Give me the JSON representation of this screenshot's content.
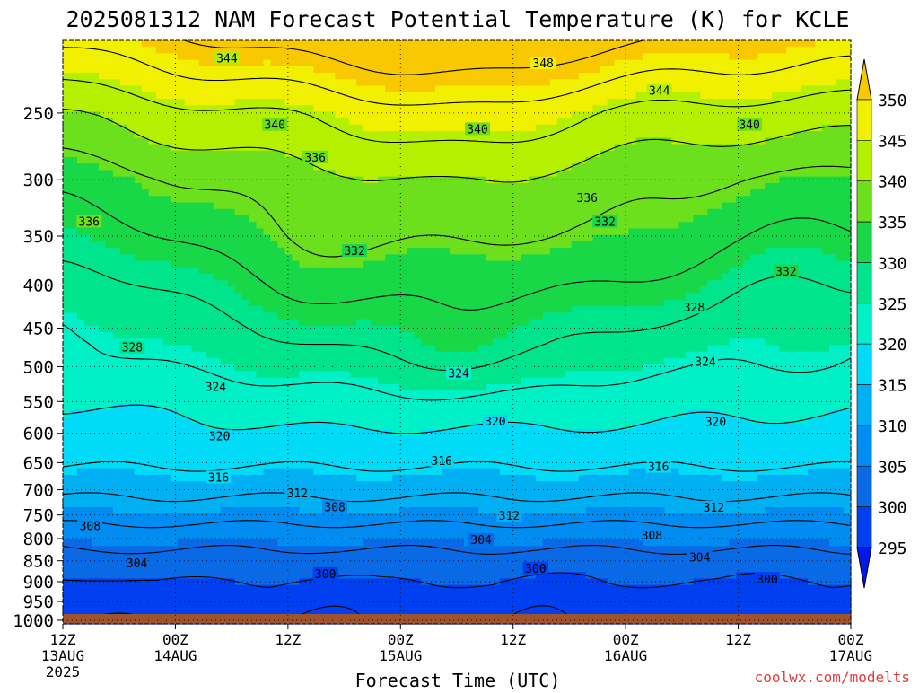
{
  "chart_data": {
    "type": "contour",
    "title": "2025081312 NAM Forecast Potential Temperature (K) for KCLE",
    "xlabel": "Forecast Time (UTC)",
    "ylabel": "",
    "x_unit": "hours since 2025-08-13 12Z",
    "xlim": [
      0,
      84
    ],
    "x_ticks": [
      {
        "hour": 0,
        "label": "12Z",
        "sub": "13AUG",
        "sub2": "2025"
      },
      {
        "hour": 12,
        "label": "00Z",
        "sub": "14AUG",
        "sub2": ""
      },
      {
        "hour": 24,
        "label": "12Z",
        "sub": "",
        "sub2": ""
      },
      {
        "hour": 36,
        "label": "00Z",
        "sub": "15AUG",
        "sub2": ""
      },
      {
        "hour": 48,
        "label": "12Z",
        "sub": "",
        "sub2": ""
      },
      {
        "hour": 60,
        "label": "00Z",
        "sub": "16AUG",
        "sub2": ""
      },
      {
        "hour": 72,
        "label": "12Z",
        "sub": "",
        "sub2": ""
      },
      {
        "hour": 84,
        "label": "00Z",
        "sub": "17AUG",
        "sub2": ""
      }
    ],
    "y_scale": "pressure (log), inverted",
    "ylim": [
      1010,
      205
    ],
    "y_ticks": [
      250,
      300,
      350,
      400,
      450,
      500,
      550,
      600,
      650,
      700,
      750,
      800,
      850,
      900,
      950,
      1000
    ],
    "ground_level_hpa": 983,
    "grid": true,
    "colorbar": {
      "levels": [
        295,
        300,
        305,
        310,
        315,
        320,
        325,
        330,
        335,
        340,
        345,
        350
      ],
      "colors": [
        "#0018e8",
        "#0040f0",
        "#0a6ae6",
        "#008cf0",
        "#00b0f2",
        "#00dcf8",
        "#00f0c8",
        "#00e58c",
        "#18d848",
        "#6ce01c",
        "#b4f000",
        "#f0f000",
        "#f8c800"
      ],
      "extend": "both"
    },
    "contour_interval": 4,
    "contour_labels": [
      {
        "value": "344",
        "hour": 17.5,
        "p": 215
      },
      {
        "value": "348",
        "hour": 51.2,
        "p": 218
      },
      {
        "value": "344",
        "hour": 63.6,
        "p": 235
      },
      {
        "value": "340",
        "hour": 22.6,
        "p": 258
      },
      {
        "value": "340",
        "hour": 44.2,
        "p": 261
      },
      {
        "value": "340",
        "hour": 73.2,
        "p": 258
      },
      {
        "value": "336",
        "hour": 26.9,
        "p": 282
      },
      {
        "value": "336",
        "hour": 55.9,
        "p": 315
      },
      {
        "value": "336",
        "hour": 2.8,
        "p": 336
      },
      {
        "value": "332",
        "hour": 57.8,
        "p": 336
      },
      {
        "value": "332",
        "hour": 31.1,
        "p": 364
      },
      {
        "value": "332",
        "hour": 77.1,
        "p": 385
      },
      {
        "value": "328",
        "hour": 67.3,
        "p": 425
      },
      {
        "value": "328",
        "hour": 7.4,
        "p": 474
      },
      {
        "value": "324",
        "hour": 42.2,
        "p": 509
      },
      {
        "value": "324",
        "hour": 68.5,
        "p": 493
      },
      {
        "value": "324",
        "hour": 16.3,
        "p": 528
      },
      {
        "value": "320",
        "hour": 46.1,
        "p": 580
      },
      {
        "value": "320",
        "hour": 69.6,
        "p": 581
      },
      {
        "value": "320",
        "hour": 16.7,
        "p": 604
      },
      {
        "value": "316",
        "hour": 40.4,
        "p": 646
      },
      {
        "value": "316",
        "hour": 63.5,
        "p": 657
      },
      {
        "value": "316",
        "hour": 16.6,
        "p": 676
      },
      {
        "value": "312",
        "hour": 25.0,
        "p": 706
      },
      {
        "value": "312",
        "hour": 47.6,
        "p": 751
      },
      {
        "value": "312",
        "hour": 69.4,
        "p": 734
      },
      {
        "value": "308",
        "hour": 29.0,
        "p": 733
      },
      {
        "value": "308",
        "hour": 2.9,
        "p": 772
      },
      {
        "value": "308",
        "hour": 62.8,
        "p": 792
      },
      {
        "value": "304",
        "hour": 44.6,
        "p": 802
      },
      {
        "value": "304",
        "hour": 7.9,
        "p": 855
      },
      {
        "value": "304",
        "hour": 67.9,
        "p": 841
      },
      {
        "value": "300",
        "hour": 28.0,
        "p": 880
      },
      {
        "value": "300",
        "hour": 50.4,
        "p": 867
      },
      {
        "value": "300",
        "hour": 75.1,
        "p": 893
      }
    ]
  },
  "credit": "coolwx.com/modelts"
}
